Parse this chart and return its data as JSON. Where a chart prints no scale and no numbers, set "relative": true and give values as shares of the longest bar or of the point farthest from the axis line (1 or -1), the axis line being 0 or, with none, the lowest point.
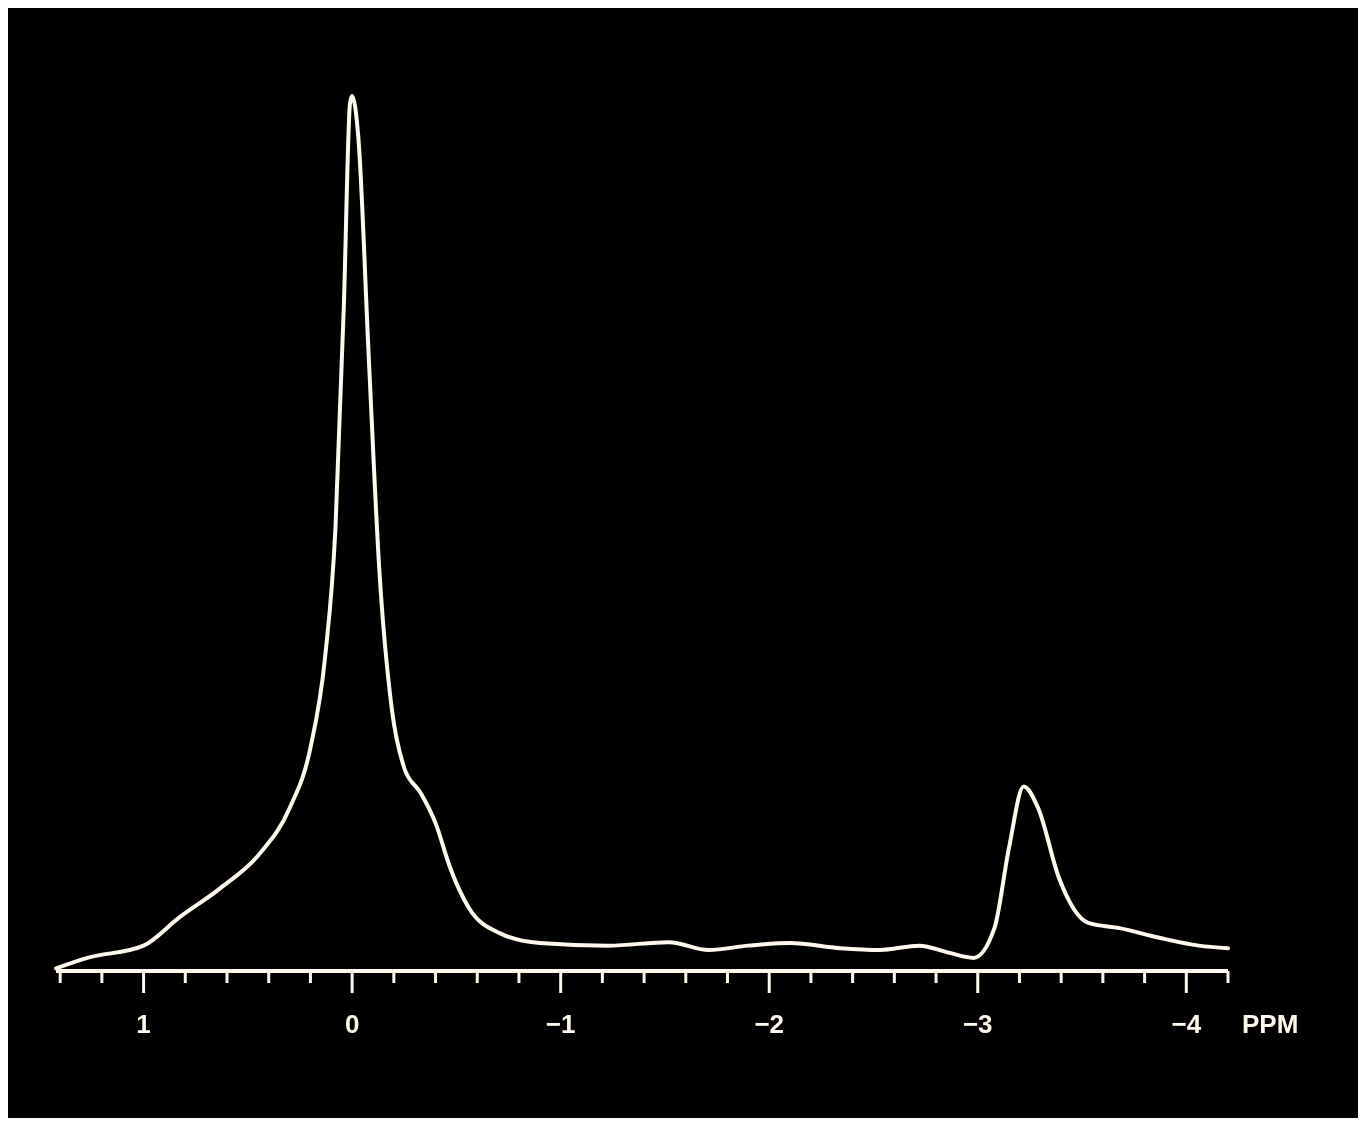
{
  "chart_data": {
    "type": "line",
    "relative": true,
    "xlabel": "PPM",
    "xlim": [
      1.42,
      -4.2
    ],
    "xticks": [
      {
        "value": 1.4,
        "label": null
      },
      {
        "value": 1.2,
        "label": null
      },
      1,
      {
        "value": 0.8,
        "label": null
      },
      {
        "value": 0.6,
        "label": null
      },
      {
        "value": 0.4,
        "label": null
      },
      {
        "value": 0.2,
        "label": null
      },
      0,
      {
        "value": -0.2,
        "label": null
      },
      {
        "value": -0.4,
        "label": null
      },
      {
        "value": -0.6,
        "label": null
      },
      {
        "value": -0.8,
        "label": null
      },
      {
        "value": -1,
        "label": "−1"
      },
      {
        "value": -1.2,
        "label": null
      },
      {
        "value": -1.4,
        "label": null
      },
      {
        "value": -1.6,
        "label": null
      },
      {
        "value": -1.8,
        "label": null
      },
      {
        "value": -2,
        "label": "−2"
      },
      {
        "value": -2.2,
        "label": null
      },
      {
        "value": -2.4,
        "label": null
      },
      {
        "value": -2.6,
        "label": null
      },
      {
        "value": -2.8,
        "label": null
      },
      {
        "value": -3,
        "label": "−3"
      },
      {
        "value": -3.2,
        "label": null
      },
      {
        "value": -3.4,
        "label": null
      },
      {
        "value": -3.6,
        "label": null
      },
      {
        "value": -3.8,
        "label": null
      },
      {
        "value": -4,
        "label": "−4"
      },
      {
        "value": -4.2,
        "label": null
      }
    ],
    "tick_labels": "x",
    "series": [
      {
        "color": "#fff8ec",
        "x": [
          1.42,
          1.27,
          1.0,
          0.83,
          0.63,
          0.44,
          0.3,
          0.2,
          0.13,
          0.08,
          0.04,
          0.01,
          0.0,
          -0.03,
          -0.08,
          -0.13,
          -0.19,
          -0.25,
          -0.33,
          -0.4,
          -0.47,
          -0.56,
          -0.71,
          -0.9,
          -1.23,
          -1.52,
          -1.71,
          -1.9,
          -2.1,
          -2.34,
          -2.53,
          -2.72,
          -2.86,
          -2.98,
          -3.08,
          -3.15,
          -3.22,
          -3.29,
          -3.39,
          -3.53,
          -3.68,
          -3.87,
          -4.06,
          -4.2
        ],
        "values": [
          0.003,
          0.015,
          0.029,
          0.061,
          0.095,
          0.135,
          0.186,
          0.255,
          0.358,
          0.506,
          0.758,
          0.992,
          1.0,
          0.952,
          0.7,
          0.46,
          0.3,
          0.232,
          0.203,
          0.169,
          0.118,
          0.072,
          0.043,
          0.032,
          0.029,
          0.033,
          0.024,
          0.029,
          0.032,
          0.026,
          0.024,
          0.029,
          0.021,
          0.015,
          0.049,
          0.141,
          0.211,
          0.186,
          0.106,
          0.055,
          0.049,
          0.038,
          0.029,
          0.026
        ]
      }
    ]
  }
}
